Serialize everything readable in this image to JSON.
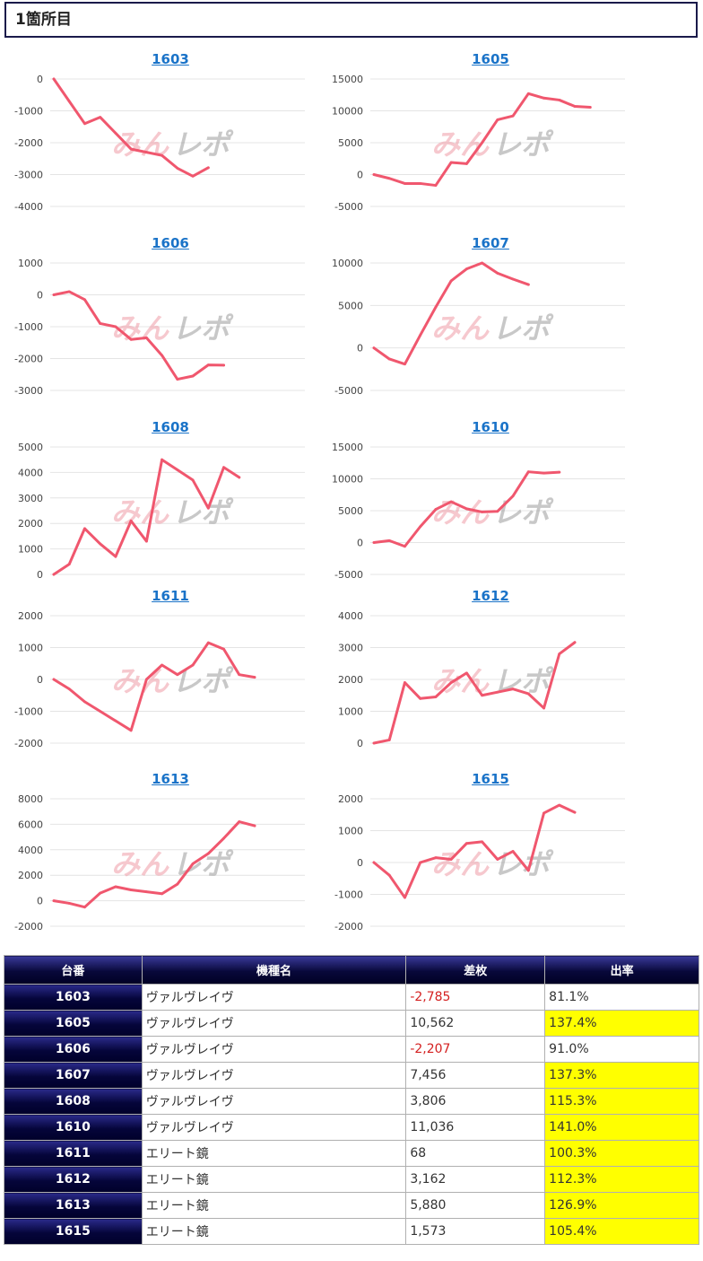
{
  "section": {
    "title": "1箇所目"
  },
  "watermark": {
    "left": "みん",
    "right": "レポ"
  },
  "colors": {
    "line": "#f0576e",
    "grid": "#e4e4e4",
    "link": "#1a73c8",
    "negative": "#d42020",
    "highlight": "#ffff00",
    "header_bg": "#05053a"
  },
  "chart_data": [
    {
      "type": "line",
      "title": "1603",
      "yticks": [
        0,
        -1000,
        -2000,
        -3000,
        -4000
      ],
      "ylim": [
        -4000,
        0
      ],
      "values": [
        0,
        -700,
        -1400,
        -1200,
        -1700,
        -2200,
        -2300,
        -2400,
        -2800,
        -3050,
        -2785
      ]
    },
    {
      "type": "line",
      "title": "1605",
      "yticks": [
        15000,
        10000,
        5000,
        0,
        -5000
      ],
      "ylim": [
        -5000,
        15000
      ],
      "values": [
        0,
        -600,
        -1400,
        -1400,
        -1700,
        1900,
        1700,
        5000,
        8600,
        9200,
        12700,
        12000,
        11700,
        10700,
        10562
      ]
    },
    {
      "type": "line",
      "title": "1606",
      "yticks": [
        1000,
        0,
        -1000,
        -2000,
        -3000
      ],
      "ylim": [
        -3000,
        1000
      ],
      "values": [
        0,
        100,
        -150,
        -900,
        -1000,
        -1400,
        -1350,
        -1900,
        -2650,
        -2550,
        -2200,
        -2207
      ]
    },
    {
      "type": "line",
      "title": "1607",
      "yticks": [
        10000,
        5000,
        0,
        -5000
      ],
      "ylim": [
        -5000,
        10000
      ],
      "values": [
        0,
        -1300,
        -1900,
        1500,
        4800,
        7900,
        9300,
        10000,
        8800,
        8100,
        7456
      ]
    },
    {
      "type": "line",
      "title": "1608",
      "yticks": [
        5000,
        4000,
        3000,
        2000,
        1000,
        0
      ],
      "ylim": [
        0,
        5000
      ],
      "values": [
        0,
        400,
        1800,
        1200,
        700,
        2100,
        1300,
        4500,
        4100,
        3700,
        2600,
        4200,
        3806
      ]
    },
    {
      "type": "line",
      "title": "1610",
      "yticks": [
        15000,
        10000,
        5000,
        0,
        -5000
      ],
      "ylim": [
        -5000,
        15000
      ],
      "values": [
        0,
        300,
        -600,
        2500,
        5200,
        6400,
        5300,
        4800,
        4900,
        7300,
        11100,
        10900,
        11036
      ]
    },
    {
      "type": "line",
      "title": "1611",
      "yticks": [
        2000,
        1000,
        0,
        -1000,
        -2000
      ],
      "ylim": [
        -2000,
        2000
      ],
      "values": [
        0,
        -300,
        -700,
        -1000,
        -1300,
        -1600,
        0,
        450,
        150,
        450,
        1150,
        950,
        150,
        68
      ]
    },
    {
      "type": "line",
      "title": "1612",
      "yticks": [
        4000,
        3000,
        2000,
        1000,
        0
      ],
      "ylim": [
        0,
        4000
      ],
      "values": [
        0,
        100,
        1900,
        1400,
        1450,
        1900,
        2200,
        1500,
        1600,
        1700,
        1550,
        1100,
        2800,
        3162
      ]
    },
    {
      "type": "line",
      "title": "1613",
      "yticks": [
        8000,
        6000,
        4000,
        2000,
        0,
        -2000
      ],
      "ylim": [
        -2000,
        8000
      ],
      "values": [
        0,
        -200,
        -500,
        600,
        1100,
        850,
        700,
        550,
        1300,
        2900,
        3700,
        4900,
        6200,
        5880
      ]
    },
    {
      "type": "line",
      "title": "1615",
      "yticks": [
        2000,
        1000,
        0,
        -1000,
        -2000
      ],
      "ylim": [
        -2000,
        2000
      ],
      "values": [
        0,
        -400,
        -1100,
        0,
        150,
        100,
        600,
        650,
        100,
        350,
        -250,
        1550,
        1800,
        1573
      ]
    }
  ],
  "table": {
    "headers": [
      "台番",
      "機種名",
      "差枚",
      "出率"
    ],
    "rows": [
      {
        "no": "1603",
        "name": "ヴァルヴレイヴ",
        "diff": "-2,785",
        "rate": "81.1%"
      },
      {
        "no": "1605",
        "name": "ヴァルヴレイヴ",
        "diff": "10,562",
        "rate": "137.4%"
      },
      {
        "no": "1606",
        "name": "ヴァルヴレイヴ",
        "diff": "-2,207",
        "rate": "91.0%"
      },
      {
        "no": "1607",
        "name": "ヴァルヴレイヴ",
        "diff": "7,456",
        "rate": "137.3%"
      },
      {
        "no": "1608",
        "name": "ヴァルヴレイヴ",
        "diff": "3,806",
        "rate": "115.3%"
      },
      {
        "no": "1610",
        "name": "ヴァルヴレイヴ",
        "diff": "11,036",
        "rate": "141.0%"
      },
      {
        "no": "1611",
        "name": "エリート鏡",
        "diff": "68",
        "rate": "100.3%"
      },
      {
        "no": "1612",
        "name": "エリート鏡",
        "diff": "3,162",
        "rate": "112.3%"
      },
      {
        "no": "1613",
        "name": "エリート鏡",
        "diff": "5,880",
        "rate": "126.9%"
      },
      {
        "no": "1615",
        "name": "エリート鏡",
        "diff": "1,573",
        "rate": "105.4%"
      }
    ]
  }
}
